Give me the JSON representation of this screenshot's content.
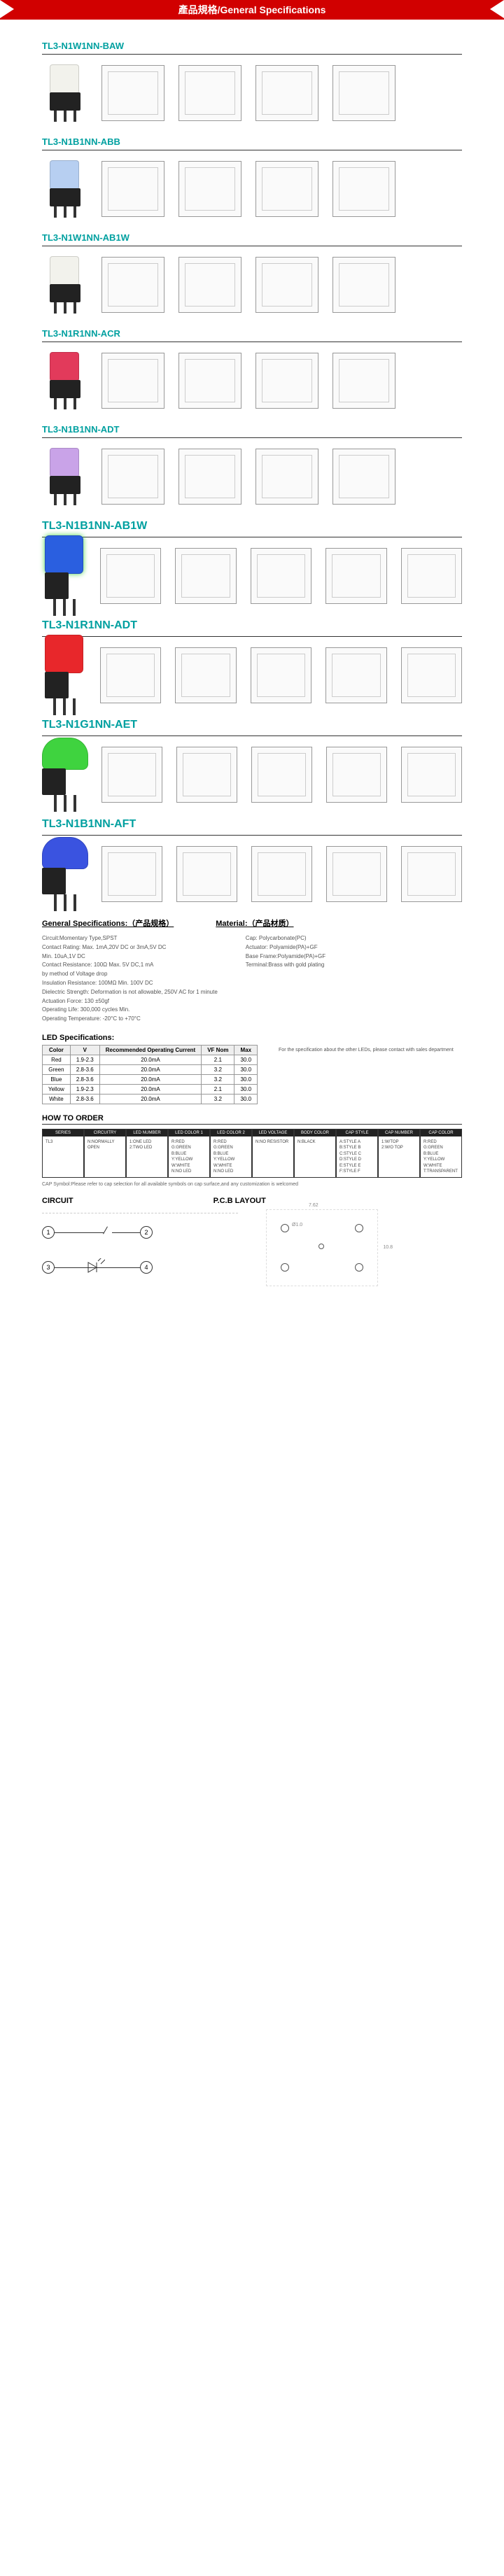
{
  "header": "產品規格/General Specifications",
  "products": [
    {
      "pn": "TL3-N1W1NN-BAW",
      "cap_color": "#f2f2ec",
      "variant": "std",
      "views": 4
    },
    {
      "pn": "TL3-N1B1NN-ABB",
      "cap_color": "#b7cff1",
      "variant": "std",
      "views": 4
    },
    {
      "pn": "TL3-N1W1NN-AB1W",
      "cap_color": "#f2f2ec",
      "variant": "std",
      "views": 4
    },
    {
      "pn": "TL3-N1R1NN-ACR",
      "cap_color": "#e23a5b",
      "variant": "std",
      "views": 4
    },
    {
      "pn": "TL3-N1B1NN-ADT",
      "cap_color": "#c9a3e8",
      "variant": "std",
      "views": 4
    },
    {
      "pn": "TL3-N1B1NN-AB1W",
      "cap_color": "#2a5fe0",
      "glow": "#4dd64d",
      "variant": "tall",
      "views": 5
    },
    {
      "pn": "TL3-N1R1NN-ADT",
      "cap_color": "#e8272b",
      "variant": "tall",
      "views": 5
    },
    {
      "pn": "TL3-N1G1NN-AET",
      "cap_color": "#3fd33f",
      "variant": "dome",
      "views": 5
    },
    {
      "pn": "TL3-N1B1NN-AFT",
      "cap_color": "#3a53e0",
      "variant": "dome",
      "views": 5
    }
  ],
  "spec_header": {
    "left": "General Specifications:（产品规格）",
    "right": "Material:（产品材质）"
  },
  "specs_left": [
    "Circuit:Momentary Type,SPST",
    "Contact Rating: Max. 1mA,20V DC or 3mA,5V DC",
    "                Min. 10uA,1V DC",
    "Contact Resistance: 100Ω Max. 5V DC,1 mA",
    "                    by method of Voltage drop",
    "Insulation Resistance: 100MΩ Min. 100V DC",
    "Dielectric Strength: Deformation is not allowable, 250V AC for 1 minute",
    "Actuation Force: 130 ±50gf",
    "Operating Life: 300,000 cycles Min.",
    "Operating Temperature: -20°C to +70°C"
  ],
  "specs_right": [
    "Cap: Polycarbonate(PC)",
    "Actuator: Polyamide(PA)+GF",
    "Base Frame:Polyamide(PA)+GF",
    "Terminal:Brass with gold plating"
  ],
  "led_title": "LED Specifications:",
  "led_table": {
    "headers": [
      "Color",
      "V",
      "Recommended Operating Current",
      "VF Nom",
      "Max"
    ],
    "rows": [
      [
        "Red",
        "1.9-2.3",
        "20.0mA",
        "2.1",
        "30.0"
      ],
      [
        "Green",
        "2.8-3.6",
        "20.0mA",
        "3.2",
        "30.0"
      ],
      [
        "Blue",
        "2.8-3.6",
        "20.0mA",
        "3.2",
        "30.0"
      ],
      [
        "Yellow",
        "1.9-2.3",
        "20.0mA",
        "2.1",
        "30.0"
      ],
      [
        "White",
        "2.8-3.6",
        "20.0mA",
        "3.2",
        "30.0"
      ]
    ]
  },
  "led_note": "For the specification about the other LEDs, please contact with sales department",
  "howto_title": "HOW TO ORDER",
  "order_cells": [
    {
      "hd": "SERIES",
      "bd": "TL3"
    },
    {
      "hd": "CIRCUITRY",
      "bd": "N:NORMALLY OPEN"
    },
    {
      "hd": "LED NUMBER",
      "bd": "1:ONE LED\n2:TWO LED"
    },
    {
      "hd": "LED COLOR 1",
      "bd": "R:RED\nG:GREEN\nB:BLUE\nY:YELLOW\nW:WHITE\nN:NO LED"
    },
    {
      "hd": "LED COLOR 2",
      "bd": "R:RED\nG:GREEN\nB:BLUE\nY:YELLOW\nW:WHITE\nN:NO LED"
    },
    {
      "hd": "LED VOLTAGE",
      "bd": "N:NO RESISTOR"
    },
    {
      "hd": "BODY COLOR",
      "bd": "N:BLACK"
    },
    {
      "hd": "CAP STYLE",
      "bd": "A:STYLE A\nB:STYLE B\nC:STYLE C\nD:STYLE D\nE:STYLE E\nF:STYLE F"
    },
    {
      "hd": "CAP NUMBER",
      "bd": "1:W/TOP\n2:W/O TOP"
    },
    {
      "hd": "CAP COLOR",
      "bd": "R:RED\nG:GREEN\nB:BLUE\nY:YELLOW\nW:WHITE\nT:TRANSPARENT"
    }
  ],
  "footnote": "CAP Symbol:Please refer to cap selection for all available symbols on cap surface,and any customization is welcomed",
  "circuit_title": "CIRCUIT",
  "pcb_title": "P.C.B LAYOUT",
  "circuit_nodes": [
    "1",
    "2",
    "3",
    "4"
  ],
  "pcb_dims": {
    "w": "10.8",
    "h": "7.62",
    "hole": "Ø1.0",
    "hole2": "Ø0.8"
  }
}
